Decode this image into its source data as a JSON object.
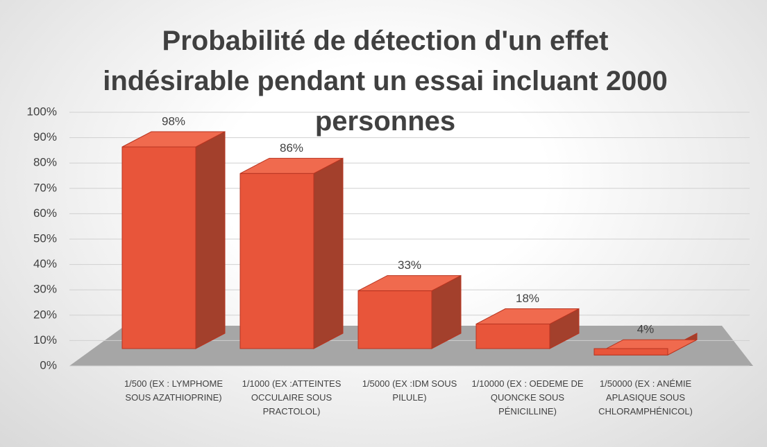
{
  "chart_data": {
    "type": "bar3d",
    "title": "Probabilité de détection d'un effet indésirable pendant un essai incluant 2000 personnes",
    "categories": [
      "1/500 (EX : LYMPHOME SOUS AZATHIOPRINE)",
      "1/1000 (EX :ATTEINTES OCCULAIRE SOUS PRACTOLOL)",
      "1/5000 (EX :IDM SOUS PILULE)",
      "1/10000 (EX : OEDEME DE QUONCKE SOUS PÉNICILLINE)",
      "1/50000 (EX : ANÉMIE APLASIQUE SOUS CHLORAMPHÉNICOL)"
    ],
    "values": [
      98,
      86,
      33,
      18,
      4
    ],
    "value_labels": [
      "98%",
      "86%",
      "33%",
      "18%",
      "4%"
    ],
    "color": "#e8553a",
    "ylim": [
      0,
      100
    ],
    "yticks": [
      {
        "value": 0,
        "label": "0%"
      },
      {
        "value": 10,
        "label": "10%"
      },
      {
        "value": 20,
        "label": "20%"
      },
      {
        "value": 30,
        "label": "30%"
      },
      {
        "value": 40,
        "label": "40%"
      },
      {
        "value": 50,
        "label": "50%"
      },
      {
        "value": 60,
        "label": "60%"
      },
      {
        "value": 70,
        "label": "70%"
      },
      {
        "value": 80,
        "label": "80%"
      },
      {
        "value": 90,
        "label": "90%"
      },
      {
        "value": 100,
        "label": "100%"
      }
    ],
    "grid": true
  }
}
